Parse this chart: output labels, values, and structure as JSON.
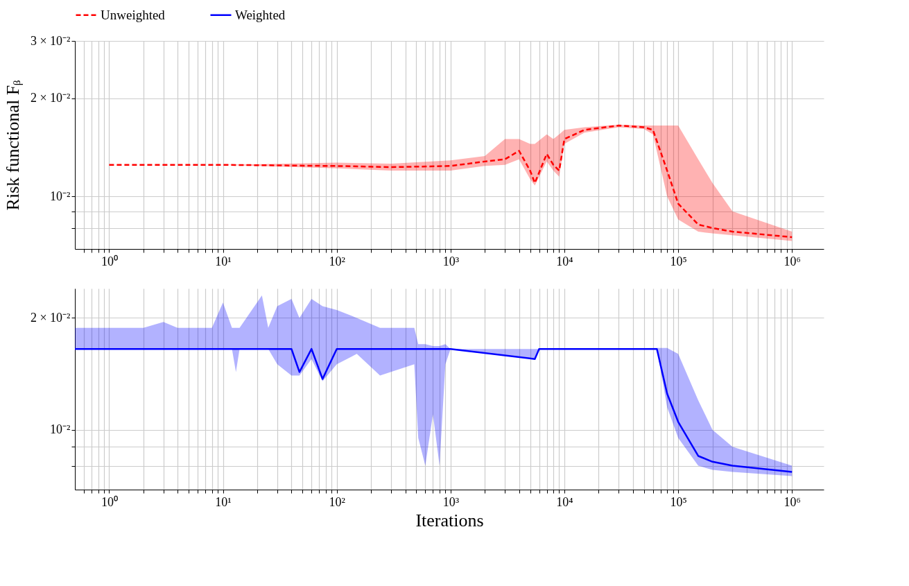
{
  "chart_data": [
    {
      "type": "line",
      "ylabel": "Risk functional Fᵦ",
      "log": "xy",
      "grid": true,
      "legend": "top",
      "line_style": "dashed",
      "xlim": [
        0.5,
        1900000
      ],
      "ylim": [
        0.0069,
        0.03
      ],
      "xticks": [
        {
          "value": 0.6,
          "label": null
        },
        {
          "value": 0.7,
          "label": null
        },
        {
          "value": 0.8,
          "label": null
        },
        {
          "value": 0.9,
          "label": null
        },
        {
          "value": 1,
          "label": "10⁰"
        },
        {
          "value": 2,
          "label": null
        },
        {
          "value": 3,
          "label": null
        },
        {
          "value": 4,
          "label": null
        },
        {
          "value": 5,
          "label": null
        },
        {
          "value": 6,
          "label": null
        },
        {
          "value": 7,
          "label": null
        },
        {
          "value": 8,
          "label": null
        },
        {
          "value": 9,
          "label": null
        },
        {
          "value": 10,
          "label": "10¹"
        },
        {
          "value": 20,
          "label": null
        },
        {
          "value": 30,
          "label": null
        },
        {
          "value": 40,
          "label": null
        },
        {
          "value": 50,
          "label": null
        },
        {
          "value": 60,
          "label": null
        },
        {
          "value": 70,
          "label": null
        },
        {
          "value": 80,
          "label": null
        },
        {
          "value": 90,
          "label": null
        },
        {
          "value": 100,
          "label": "10²"
        },
        {
          "value": 200,
          "label": null
        },
        {
          "value": 300,
          "label": null
        },
        {
          "value": 400,
          "label": null
        },
        {
          "value": 500,
          "label": null
        },
        {
          "value": 600,
          "label": null
        },
        {
          "value": 700,
          "label": null
        },
        {
          "value": 800,
          "label": null
        },
        {
          "value": 900,
          "label": null
        },
        {
          "value": 1000,
          "label": "10³"
        },
        {
          "value": 2000,
          "label": null
        },
        {
          "value": 3000,
          "label": null
        },
        {
          "value": 4000,
          "label": null
        },
        {
          "value": 5000,
          "label": null
        },
        {
          "value": 6000,
          "label": null
        },
        {
          "value": 7000,
          "label": null
        },
        {
          "value": 8000,
          "label": null
        },
        {
          "value": 9000,
          "label": null
        },
        {
          "value": 10000,
          "label": "10⁴"
        },
        {
          "value": 20000,
          "label": null
        },
        {
          "value": 30000,
          "label": null
        },
        {
          "value": 40000,
          "label": null
        },
        {
          "value": 50000,
          "label": null
        },
        {
          "value": 60000,
          "label": null
        },
        {
          "value": 70000,
          "label": null
        },
        {
          "value": 80000,
          "label": null
        },
        {
          "value": 90000,
          "label": null
        },
        {
          "value": 100000,
          "label": "10⁵"
        },
        {
          "value": 200000,
          "label": null
        },
        {
          "value": 300000,
          "label": null
        },
        {
          "value": 400000,
          "label": null
        },
        {
          "value": 500000,
          "label": null
        },
        {
          "value": 600000,
          "label": null
        },
        {
          "value": 700000,
          "label": null
        },
        {
          "value": 800000,
          "label": null
        },
        {
          "value": 900000,
          "label": null
        },
        {
          "value": 1000000,
          "label": "10⁶"
        }
      ],
      "yticks": [
        {
          "value": 0.008,
          "label": null
        },
        {
          "value": 0.009,
          "label": null
        },
        {
          "value": 0.01,
          "label": "10⁻²"
        },
        {
          "value": 0.02,
          "label": "2 × 10⁻²"
        },
        {
          "value": 0.03,
          "label": "3 × 10⁻²"
        }
      ],
      "series": [
        {
          "name": "Unweighted",
          "color": "#ff0000",
          "x": [
            1,
            10,
            100,
            300,
            1000,
            2000,
            3000,
            4000,
            5000,
            5500,
            7000,
            8000,
            9000,
            10000,
            15000,
            30000,
            50000,
            60000,
            80000,
            100000,
            150000,
            200000,
            300000,
            1000000
          ],
          "values": [
            0.0125,
            0.0125,
            0.0124,
            0.0123,
            0.0124,
            0.0128,
            0.013,
            0.0138,
            0.012,
            0.011,
            0.0135,
            0.0125,
            0.012,
            0.015,
            0.016,
            0.0165,
            0.0163,
            0.016,
            0.012,
            0.0095,
            0.0082,
            0.008,
            0.0078,
            0.0075
          ],
          "lower": [
            0.0125,
            0.0125,
            0.0122,
            0.012,
            0.012,
            0.0124,
            0.0125,
            0.013,
            0.0113,
            0.0108,
            0.0128,
            0.012,
            0.0115,
            0.0145,
            0.0157,
            0.0163,
            0.0161,
            0.0155,
            0.01,
            0.0085,
            0.0078,
            0.0077,
            0.0076,
            0.0073
          ],
          "upper": [
            0.0125,
            0.0125,
            0.0127,
            0.0126,
            0.0129,
            0.0133,
            0.015,
            0.015,
            0.0145,
            0.0145,
            0.0155,
            0.015,
            0.0155,
            0.016,
            0.0163,
            0.0166,
            0.0165,
            0.0165,
            0.0165,
            0.0165,
            0.013,
            0.011,
            0.009,
            0.0078
          ]
        }
      ]
    },
    {
      "type": "line",
      "xlabel": "Iterations",
      "log": "xy",
      "grid": true,
      "legend": "top",
      "line_style": "solid",
      "xlim": [
        0.5,
        1900000
      ],
      "ylim": [
        0.0069,
        0.024
      ],
      "xticks": [
        {
          "value": 0.6,
          "label": null
        },
        {
          "value": 0.7,
          "label": null
        },
        {
          "value": 0.8,
          "label": null
        },
        {
          "value": 0.9,
          "label": null
        },
        {
          "value": 1,
          "label": "10⁰"
        },
        {
          "value": 2,
          "label": null
        },
        {
          "value": 3,
          "label": null
        },
        {
          "value": 4,
          "label": null
        },
        {
          "value": 5,
          "label": null
        },
        {
          "value": 6,
          "label": null
        },
        {
          "value": 7,
          "label": null
        },
        {
          "value": 8,
          "label": null
        },
        {
          "value": 9,
          "label": null
        },
        {
          "value": 10,
          "label": "10¹"
        },
        {
          "value": 20,
          "label": null
        },
        {
          "value": 30,
          "label": null
        },
        {
          "value": 40,
          "label": null
        },
        {
          "value": 50,
          "label": null
        },
        {
          "value": 60,
          "label": null
        },
        {
          "value": 70,
          "label": null
        },
        {
          "value": 80,
          "label": null
        },
        {
          "value": 90,
          "label": null
        },
        {
          "value": 100,
          "label": "10²"
        },
        {
          "value": 200,
          "label": null
        },
        {
          "value": 300,
          "label": null
        },
        {
          "value": 400,
          "label": null
        },
        {
          "value": 500,
          "label": null
        },
        {
          "value": 600,
          "label": null
        },
        {
          "value": 700,
          "label": null
        },
        {
          "value": 800,
          "label": null
        },
        {
          "value": 900,
          "label": null
        },
        {
          "value": 1000,
          "label": "10³"
        },
        {
          "value": 2000,
          "label": null
        },
        {
          "value": 3000,
          "label": null
        },
        {
          "value": 4000,
          "label": null
        },
        {
          "value": 5000,
          "label": null
        },
        {
          "value": 6000,
          "label": null
        },
        {
          "value": 7000,
          "label": null
        },
        {
          "value": 8000,
          "label": null
        },
        {
          "value": 9000,
          "label": null
        },
        {
          "value": 10000,
          "label": "10⁴"
        },
        {
          "value": 20000,
          "label": null
        },
        {
          "value": 30000,
          "label": null
        },
        {
          "value": 40000,
          "label": null
        },
        {
          "value": 50000,
          "label": null
        },
        {
          "value": 60000,
          "label": null
        },
        {
          "value": 70000,
          "label": null
        },
        {
          "value": 80000,
          "label": null
        },
        {
          "value": 90000,
          "label": null
        },
        {
          "value": 100000,
          "label": "10⁵"
        },
        {
          "value": 200000,
          "label": null
        },
        {
          "value": 300000,
          "label": null
        },
        {
          "value": 400000,
          "label": null
        },
        {
          "value": 500000,
          "label": null
        },
        {
          "value": 600000,
          "label": null
        },
        {
          "value": 700000,
          "label": null
        },
        {
          "value": 800000,
          "label": null
        },
        {
          "value": 900000,
          "label": null
        },
        {
          "value": 1000000,
          "label": "10⁶"
        }
      ],
      "yticks": [
        {
          "value": 0.008,
          "label": null
        },
        {
          "value": 0.009,
          "label": null
        },
        {
          "value": 0.01,
          "label": "10⁻²"
        },
        {
          "value": 0.02,
          "label": "2 × 10⁻²"
        }
      ],
      "series": [
        {
          "name": "Weighted",
          "color": "#0000ff",
          "x": [
            0.5,
            2,
            3,
            4,
            8,
            10,
            12,
            13,
            14,
            22,
            25,
            30,
            40,
            47,
            60,
            75,
            100,
            150,
            240,
            480,
            520,
            600,
            700,
            800,
            900,
            1000,
            5500,
            6000,
            65000,
            80000,
            100000,
            150000,
            200000,
            300000,
            1000000
          ],
          "values": [
            0.0165,
            0.0165,
            0.0165,
            0.0165,
            0.0165,
            0.0165,
            0.0165,
            0.0165,
            0.0165,
            0.0165,
            0.0165,
            0.0165,
            0.0165,
            0.0143,
            0.0165,
            0.0137,
            0.0165,
            0.0165,
            0.0165,
            0.0165,
            0.0165,
            0.0165,
            0.0165,
            0.0165,
            0.0165,
            0.0165,
            0.0155,
            0.0165,
            0.0165,
            0.0125,
            0.0105,
            0.0085,
            0.0082,
            0.008,
            0.0077
          ],
          "lower": [
            0.0165,
            0.0165,
            0.0165,
            0.0165,
            0.0165,
            0.0165,
            0.0165,
            0.0143,
            0.0165,
            0.0165,
            0.0165,
            0.015,
            0.014,
            0.014,
            0.0155,
            0.0135,
            0.015,
            0.016,
            0.014,
            0.015,
            0.0095,
            0.008,
            0.011,
            0.008,
            0.015,
            0.0165,
            0.0155,
            0.0165,
            0.0165,
            0.0115,
            0.0095,
            0.008,
            0.0078,
            0.0077,
            0.0075
          ],
          "upper": [
            0.0188,
            0.0188,
            0.0195,
            0.0188,
            0.0188,
            0.022,
            0.0188,
            0.0188,
            0.0188,
            0.023,
            0.0188,
            0.0215,
            0.0225,
            0.02,
            0.0225,
            0.0215,
            0.021,
            0.02,
            0.0188,
            0.0188,
            0.017,
            0.017,
            0.0168,
            0.0168,
            0.017,
            0.0165,
            0.0165,
            0.0165,
            0.0166,
            0.0166,
            0.016,
            0.012,
            0.01,
            0.009,
            0.008
          ]
        }
      ]
    }
  ]
}
